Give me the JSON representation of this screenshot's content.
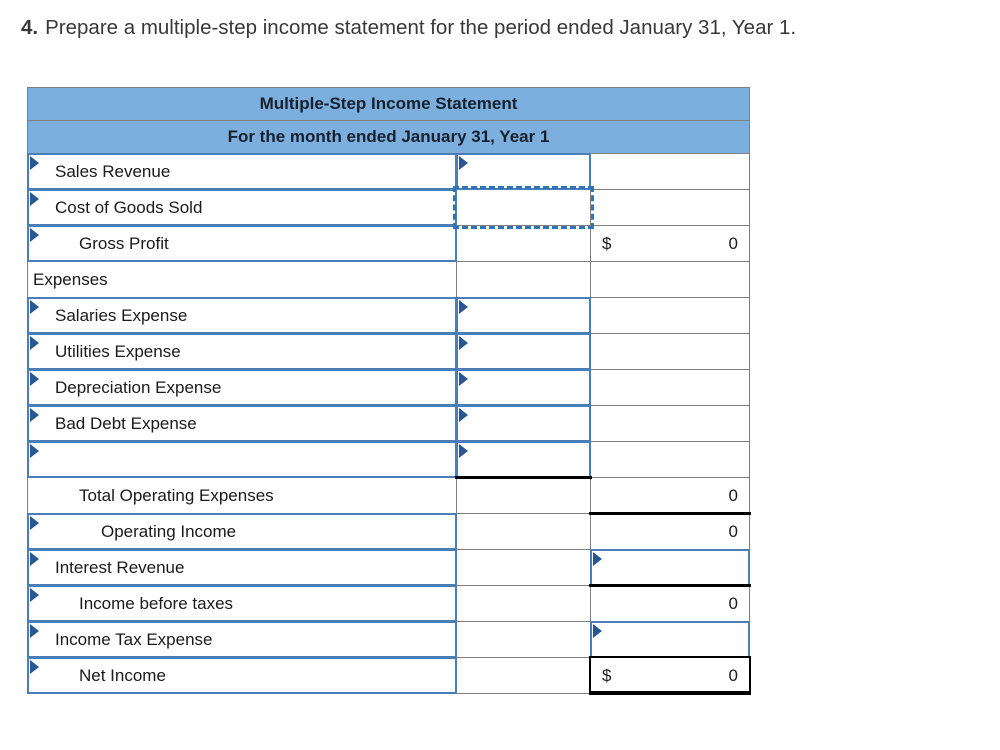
{
  "title": {
    "number": "4.",
    "text": "Prepare a multiple-step income statement for the period ended January 31, Year 1."
  },
  "statement": {
    "header1": "Multiple-Step Income Statement",
    "header2": "For the month ended January 31, Year 1",
    "rows": [
      {
        "label": "Sales Revenue",
        "indent": 1,
        "label_cell": "input",
        "mid_cell": "input",
        "right_cell": "empty"
      },
      {
        "label": "Cost of Goods Sold",
        "indent": 1,
        "label_cell": "input",
        "mid_cell": "selected",
        "right_cell": "empty"
      },
      {
        "label": "Gross Profit",
        "indent": 2,
        "label_cell": "input",
        "mid_cell": "empty",
        "right_cell": "value",
        "dollar": "$",
        "value": "0"
      },
      {
        "label": "Expenses",
        "indent": 0,
        "label_cell": "plain",
        "mid_cell": "empty",
        "right_cell": "empty"
      },
      {
        "label": "Salaries Expense",
        "indent": 1,
        "label_cell": "input",
        "mid_cell": "input",
        "right_cell": "empty"
      },
      {
        "label": "Utilities Expense",
        "indent": 1,
        "label_cell": "input",
        "mid_cell": "input",
        "right_cell": "empty"
      },
      {
        "label": "Depreciation Expense",
        "indent": 1,
        "label_cell": "input",
        "mid_cell": "input",
        "right_cell": "empty"
      },
      {
        "label": "Bad Debt Expense",
        "indent": 1,
        "label_cell": "input",
        "mid_cell": "input",
        "right_cell": "empty"
      },
      {
        "label": "",
        "indent": 1,
        "label_cell": "input",
        "mid_cell": "input",
        "right_cell": "empty"
      },
      {
        "label": "Total Operating Expenses",
        "indent": 2,
        "label_cell": "plain",
        "mid_cell": "rule-top",
        "right_cell": "value",
        "dollar": "",
        "value": "0"
      },
      {
        "label": "Operating Income",
        "indent": 3,
        "label_cell": "input",
        "mid_cell": "empty",
        "right_cell": "value-rule-top",
        "dollar": "",
        "value": "0"
      },
      {
        "label": "Interest Revenue",
        "indent": 1,
        "label_cell": "input",
        "mid_cell": "empty",
        "right_cell": "input"
      },
      {
        "label": "Income before taxes",
        "indent": 2,
        "label_cell": "input",
        "mid_cell": "empty",
        "right_cell": "value-rule-top",
        "dollar": "",
        "value": "0"
      },
      {
        "label": "Income Tax Expense",
        "indent": 1,
        "label_cell": "input",
        "mid_cell": "empty",
        "right_cell": "input"
      },
      {
        "label": "Net Income",
        "indent": 2,
        "label_cell": "input",
        "mid_cell": "empty",
        "right_cell": "value-final",
        "dollar": "$",
        "value": "0"
      }
    ]
  },
  "colors": {
    "header_blue": "#7cafde",
    "grid_gray": "#7f7f7f",
    "input_border_blue": "#4a7ebb",
    "marker_navy": "#28568f",
    "selection_blue": "#2e75b6",
    "total_rule_black": "#000000"
  }
}
